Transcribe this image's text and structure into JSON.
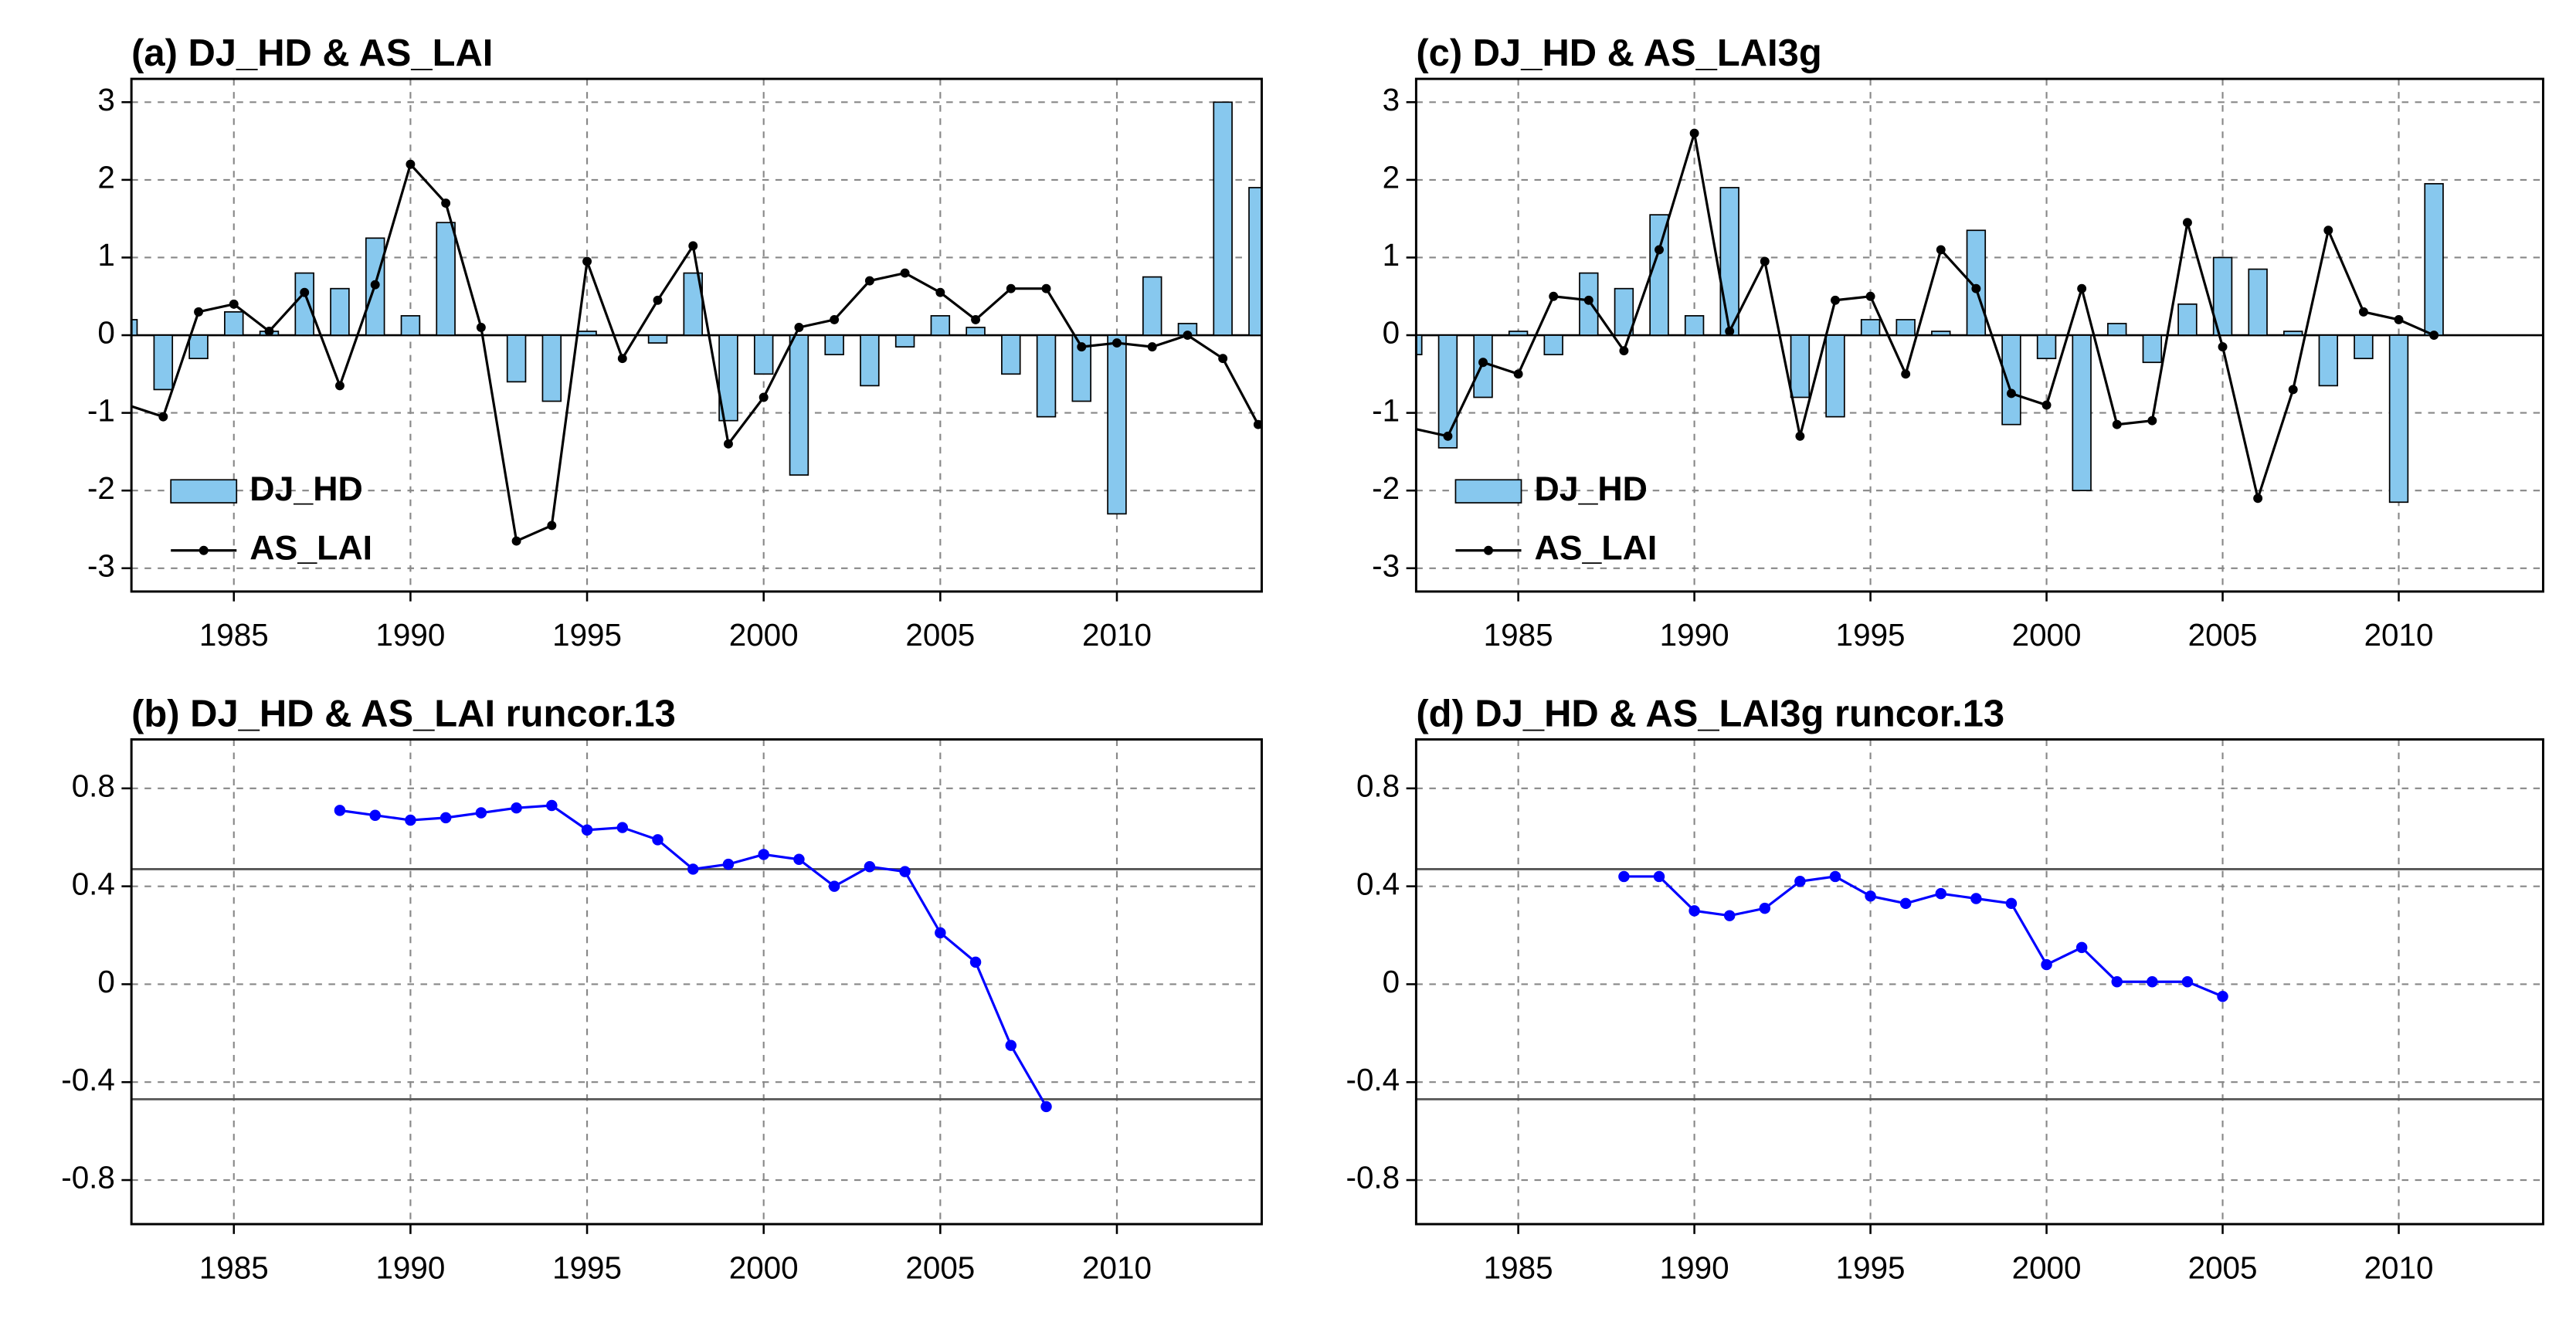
{
  "chart_data": [
    {
      "type": "combo",
      "title": "(a) DJ_HD & AS_LAI",
      "x": [
        1982,
        1983,
        1984,
        1985,
        1986,
        1987,
        1988,
        1989,
        1990,
        1991,
        1992,
        1993,
        1994,
        1995,
        1996,
        1997,
        1998,
        1999,
        2000,
        2001,
        2002,
        2003,
        2004,
        2005,
        2006,
        2007,
        2008,
        2009,
        2010,
        2011,
        2012,
        2013,
        2014
      ],
      "series": [
        {
          "name": "DJ_HD",
          "type": "bar",
          "color": "#87c8ee",
          "values": [
            0.2,
            -0.7,
            -0.3,
            0.3,
            0.05,
            0.8,
            0.6,
            1.25,
            0.25,
            1.45,
            0.0,
            -0.6,
            -0.85,
            0.05,
            0.0,
            -0.1,
            0.8,
            -1.1,
            -0.5,
            -1.8,
            -0.25,
            -0.65,
            -0.15,
            0.25,
            0.1,
            -0.5,
            -1.05,
            -0.85,
            -2.3,
            0.75,
            0.15,
            3.0,
            1.9
          ]
        },
        {
          "name": "AS_LAI",
          "type": "line",
          "color": "#000000",
          "values": [
            -0.9,
            -1.05,
            0.3,
            0.4,
            0.05,
            0.55,
            -0.65,
            0.65,
            2.2,
            1.7,
            0.1,
            -2.65,
            -2.45,
            0.95,
            -0.3,
            0.45,
            1.15,
            -1.4,
            -0.8,
            0.1,
            0.2,
            0.7,
            0.8,
            0.55,
            0.2,
            0.6,
            0.6,
            -0.15,
            -0.1,
            -0.15,
            0.0,
            -0.3,
            -1.15
          ]
        }
      ],
      "xlim": [
        1982.1,
        2014.1
      ],
      "xticks": [
        1985,
        1990,
        1995,
        2000,
        2005,
        2010
      ],
      "ylim": [
        -3.3,
        3.3
      ],
      "yticks": [
        -3,
        -2,
        -1,
        0,
        1,
        2,
        3
      ],
      "grid": true,
      "zero_line": true,
      "legend": "lower left"
    },
    {
      "type": "line",
      "title": "(b) DJ_HD & AS_LAI runcor.13",
      "x": [
        1988,
        1989,
        1990,
        1991,
        1992,
        1993,
        1994,
        1995,
        1996,
        1997,
        1998,
        1999,
        2000,
        2001,
        2002,
        2003,
        2004,
        2005,
        2006,
        2007,
        2008
      ],
      "series": [
        {
          "color": "#0000ff",
          "values": [
            0.71,
            0.69,
            0.67,
            0.68,
            0.7,
            0.72,
            0.73,
            0.63,
            0.64,
            0.59,
            0.47,
            0.49,
            0.53,
            0.51,
            0.4,
            0.48,
            0.46,
            0.21,
            0.09,
            -0.25,
            -0.5
          ]
        }
      ],
      "hlines": [
        0.47,
        -0.47
      ],
      "xlim": [
        1982.1,
        2014.1
      ],
      "xticks": [
        1985,
        1990,
        1995,
        2000,
        2005,
        2010
      ],
      "ylim": [
        -0.98,
        1.0
      ],
      "yticks": [
        -0.8,
        -0.4,
        0,
        0.4,
        0.8
      ],
      "grid": true
    },
    {
      "type": "combo",
      "title": "(c) DJ_HD & AS_LAI3g",
      "x": [
        1982,
        1983,
        1984,
        1985,
        1986,
        1987,
        1988,
        1989,
        1990,
        1991,
        1992,
        1993,
        1994,
        1995,
        1996,
        1997,
        1998,
        1999,
        2000,
        2001,
        2002,
        2003,
        2004,
        2005,
        2006,
        2007,
        2008,
        2009,
        2010,
        2011
      ],
      "series": [
        {
          "name": "DJ_HD",
          "type": "bar",
          "color": "#87c8ee",
          "values": [
            -0.25,
            -1.45,
            -0.8,
            0.05,
            -0.25,
            0.8,
            0.6,
            1.55,
            0.25,
            1.9,
            0.0,
            -0.8,
            -1.05,
            0.2,
            0.2,
            0.05,
            1.35,
            -1.15,
            -0.3,
            -2.0,
            0.15,
            -0.35,
            0.4,
            1.0,
            0.85,
            0.05,
            -0.65,
            -0.3,
            -2.15,
            1.95
          ]
        },
        {
          "name": "AS_LAI",
          "type": "line",
          "color": "#000000",
          "values": [
            -1.2,
            -1.3,
            -0.35,
            -0.5,
            0.5,
            0.45,
            -0.2,
            1.1,
            2.6,
            0.05,
            0.95,
            -1.3,
            0.45,
            0.5,
            -0.5,
            1.1,
            0.6,
            -0.75,
            -0.9,
            0.6,
            -1.15,
            -1.1,
            1.45,
            -0.15,
            -2.1,
            -0.7,
            1.35,
            0.3,
            0.2,
            0.0
          ]
        }
      ],
      "xlim": [
        1982.1,
        2014.1
      ],
      "xticks": [
        1985,
        1990,
        1995,
        2000,
        2005,
        2010
      ],
      "ylim": [
        -3.3,
        3.3
      ],
      "yticks": [
        -3,
        -2,
        -1,
        0,
        1,
        2,
        3
      ],
      "grid": true,
      "zero_line": true,
      "legend": "lower left"
    },
    {
      "type": "line",
      "title": "(d) DJ_HD & AS_LAI3g runcor.13",
      "x": [
        1988,
        1989,
        1990,
        1991,
        1992,
        1993,
        1994,
        1995,
        1996,
        1997,
        1998,
        1999,
        2000,
        2001,
        2002,
        2003,
        2004,
        2005
      ],
      "series": [
        {
          "color": "#0000ff",
          "values": [
            0.44,
            0.44,
            0.3,
            0.28,
            0.31,
            0.42,
            0.44,
            0.36,
            0.33,
            0.37,
            0.35,
            0.33,
            0.08,
            0.15,
            0.01,
            0.01,
            0.01,
            -0.05
          ]
        }
      ],
      "hlines": [
        0.47,
        -0.47
      ],
      "xlim": [
        1982.1,
        2014.1
      ],
      "xticks": [
        1985,
        1990,
        1995,
        2000,
        2005,
        2010
      ],
      "ylim": [
        -0.98,
        1.0
      ],
      "yticks": [
        -0.8,
        -0.4,
        0,
        0.4,
        0.8
      ],
      "grid": true
    }
  ]
}
